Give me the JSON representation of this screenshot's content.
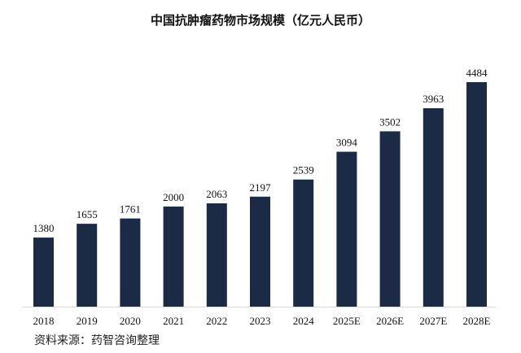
{
  "chart_data": {
    "type": "bar",
    "title": "中国抗肿瘤药物市场规模（亿元人民币）",
    "categories": [
      "2018",
      "2019",
      "2020",
      "2021",
      "2022",
      "2023",
      "2024",
      "2025E",
      "2026E",
      "2027E",
      "2028E"
    ],
    "values": [
      1380,
      1655,
      1761,
      2000,
      2063,
      2197,
      2539,
      3094,
      3502,
      3963,
      4484
    ],
    "xlabel": "",
    "ylabel": "",
    "ylim": [
      0,
      4484
    ],
    "grid": false,
    "bar_color": "#1b2a45",
    "source": "资料来源：药智咨询整理"
  }
}
